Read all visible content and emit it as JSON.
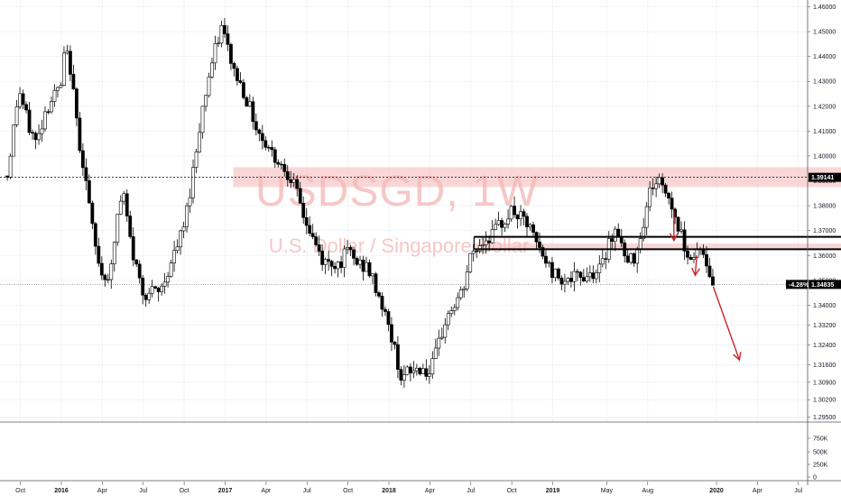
{
  "chart_data": {
    "type": "candlestick",
    "symbol_watermark": "USDSGD, 1W",
    "subtitle_watermark": "U.S. Dollar / Singapore Dollar",
    "ylim": [
      1.293,
      1.462
    ],
    "y_ticks": [
      "1.46000",
      "1.45000",
      "1.44000",
      "1.43000",
      "1.42000",
      "1.41000",
      "1.40000",
      "1.39000",
      "1.38000",
      "1.37000",
      "1.36000",
      "1.35000",
      "1.34000",
      "1.33200",
      "1.32400",
      "1.31600",
      "1.30900",
      "1.30200",
      "1.29500"
    ],
    "x_ticks": [
      {
        "label": "Oct",
        "t": -0.25
      },
      {
        "label": "2016",
        "t": 0,
        "bold": true
      },
      {
        "label": "Apr",
        "t": 0.25
      },
      {
        "label": "Jul",
        "t": 0.5
      },
      {
        "label": "Oct",
        "t": 0.75
      },
      {
        "label": "2017",
        "t": 1,
        "bold": true
      },
      {
        "label": "Apr",
        "t": 1.25
      },
      {
        "label": "Jul",
        "t": 1.5
      },
      {
        "label": "Oct",
        "t": 1.75
      },
      {
        "label": "2018",
        "t": 2,
        "bold": true
      },
      {
        "label": "Apr",
        "t": 2.25
      },
      {
        "label": "Jul",
        "t": 2.5
      },
      {
        "label": "Oct",
        "t": 2.75
      },
      {
        "label": "2019",
        "t": 3,
        "bold": true
      },
      {
        "label": "May",
        "t": 3.33
      },
      {
        "label": "Aug",
        "t": 3.58
      },
      {
        "label": "2020",
        "t": 4,
        "bold": true
      },
      {
        "label": "Apr",
        "t": 4.25
      },
      {
        "label": "Jul",
        "t": 4.5
      }
    ],
    "volume_ticks": [
      "750K",
      "500K",
      "250K",
      "0"
    ],
    "levels": {
      "dotted_resistance": {
        "value": 1.39141,
        "label": "1.39141"
      },
      "last_price": {
        "value": 1.34835,
        "label": "1.34835",
        "change": "-4.28%"
      }
    },
    "zones": [
      {
        "from_t": 1.05,
        "to_t": 4.8,
        "low": 1.3875,
        "high": 1.3955
      },
      {
        "from_t": 2.52,
        "to_t": 4.8,
        "low": 1.3628,
        "high": 1.3648
      }
    ],
    "hlines": [
      {
        "from_t": 2.52,
        "to_t": 4.8,
        "value": 1.3675
      },
      {
        "from_t": 2.52,
        "to_t": 4.8,
        "value": 1.3625
      }
    ],
    "projection": [
      {
        "t": 3.98,
        "v": 1.3475
      },
      {
        "t": 4.14,
        "v": 1.318
      }
    ],
    "anchors": [
      {
        "t": -0.33,
        "v": 1.392
      },
      {
        "t": -0.29,
        "v": 1.412
      },
      {
        "t": -0.26,
        "v": 1.427
      },
      {
        "t": -0.2,
        "v": 1.412
      },
      {
        "t": -0.15,
        "v": 1.405
      },
      {
        "t": -0.1,
        "v": 1.418
      },
      {
        "t": -0.05,
        "v": 1.424
      },
      {
        "t": 0.0,
        "v": 1.428
      },
      {
        "t": 0.02,
        "v": 1.442
      },
      {
        "t": 0.05,
        "v": 1.438
      },
      {
        "t": 0.1,
        "v": 1.41
      },
      {
        "t": 0.15,
        "v": 1.39
      },
      {
        "t": 0.2,
        "v": 1.365
      },
      {
        "t": 0.25,
        "v": 1.352
      },
      {
        "t": 0.3,
        "v": 1.352
      },
      {
        "t": 0.35,
        "v": 1.38
      },
      {
        "t": 0.38,
        "v": 1.384
      },
      {
        "t": 0.43,
        "v": 1.362
      },
      {
        "t": 0.5,
        "v": 1.345
      },
      {
        "t": 0.6,
        "v": 1.345
      },
      {
        "t": 0.7,
        "v": 1.362
      },
      {
        "t": 0.75,
        "v": 1.372
      },
      {
        "t": 0.8,
        "v": 1.392
      },
      {
        "t": 0.85,
        "v": 1.415
      },
      {
        "t": 0.9,
        "v": 1.432
      },
      {
        "t": 0.95,
        "v": 1.445
      },
      {
        "t": 0.98,
        "v": 1.452
      },
      {
        "t": 1.05,
        "v": 1.435
      },
      {
        "t": 1.12,
        "v": 1.425
      },
      {
        "t": 1.2,
        "v": 1.41
      },
      {
        "t": 1.3,
        "v": 1.4
      },
      {
        "t": 1.4,
        "v": 1.392
      },
      {
        "t": 1.5,
        "v": 1.372
      },
      {
        "t": 1.6,
        "v": 1.357
      },
      {
        "t": 1.7,
        "v": 1.357
      },
      {
        "t": 1.75,
        "v": 1.362
      },
      {
        "t": 1.8,
        "v": 1.357
      },
      {
        "t": 1.87,
        "v": 1.355
      },
      {
        "t": 1.95,
        "v": 1.342
      },
      {
        "t": 2.02,
        "v": 1.326
      },
      {
        "t": 2.08,
        "v": 1.31
      },
      {
        "t": 2.12,
        "v": 1.313
      },
      {
        "t": 2.2,
        "v": 1.315
      },
      {
        "t": 2.25,
        "v": 1.312
      },
      {
        "t": 2.3,
        "v": 1.323
      },
      {
        "t": 2.35,
        "v": 1.335
      },
      {
        "t": 2.45,
        "v": 1.345
      },
      {
        "t": 2.5,
        "v": 1.36
      },
      {
        "t": 2.55,
        "v": 1.364
      },
      {
        "t": 2.65,
        "v": 1.37
      },
      {
        "t": 2.75,
        "v": 1.378
      },
      {
        "t": 2.85,
        "v": 1.372
      },
      {
        "t": 2.92,
        "v": 1.362
      },
      {
        "t": 3.0,
        "v": 1.353
      },
      {
        "t": 3.1,
        "v": 1.35
      },
      {
        "t": 3.2,
        "v": 1.352
      },
      {
        "t": 3.3,
        "v": 1.355
      },
      {
        "t": 3.35,
        "v": 1.368
      },
      {
        "t": 3.4,
        "v": 1.37
      },
      {
        "t": 3.45,
        "v": 1.356
      },
      {
        "t": 3.5,
        "v": 1.36
      },
      {
        "t": 3.55,
        "v": 1.372
      },
      {
        "t": 3.6,
        "v": 1.388
      },
      {
        "t": 3.65,
        "v": 1.39
      },
      {
        "t": 3.7,
        "v": 1.385
      },
      {
        "t": 3.75,
        "v": 1.375
      },
      {
        "t": 3.8,
        "v": 1.365
      },
      {
        "t": 3.85,
        "v": 1.358
      },
      {
        "t": 3.9,
        "v": 1.365
      },
      {
        "t": 3.93,
        "v": 1.356
      },
      {
        "t": 3.96,
        "v": 1.352
      },
      {
        "t": 3.98,
        "v": 1.348
      }
    ]
  }
}
